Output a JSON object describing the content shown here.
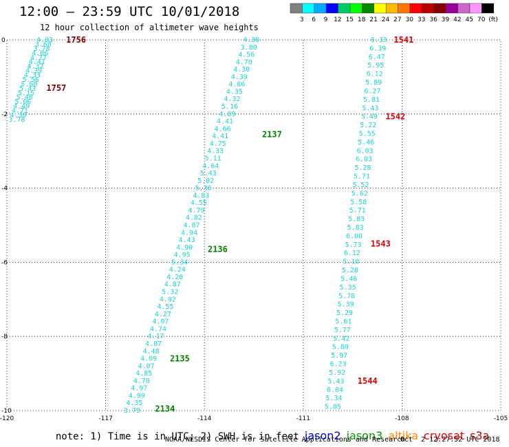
{
  "header": {
    "title": "12:00 – 23:59 UTC 10/01/2018",
    "subtitle": "12 hour collection of altimeter wave heights"
  },
  "colorbar": {
    "colors": [
      "#808080",
      "#00ffff",
      "#00aaff",
      "#0000ff",
      "#00cc66",
      "#00ff00",
      "#008800",
      "#ffff00",
      "#ffbb00",
      "#ff7700",
      "#ff0000",
      "#bb0000",
      "#880000",
      "#990099",
      "#cc66cc",
      "#ff99ff",
      "#000000"
    ],
    "labels": [
      "3",
      "6",
      "9",
      "12",
      "15",
      "18",
      "21",
      "24",
      "27",
      "30",
      "33",
      "36",
      "39",
      "42",
      "45",
      "70",
      "(ft)"
    ]
  },
  "chart_data": {
    "type": "scatter",
    "title": "12:00 – 23:59 UTC 10/01/2018",
    "subtitle": "12 hour collection of altimeter wave heights",
    "xlim": [
      -120,
      -105
    ],
    "ylim": [
      -10,
      0
    ],
    "x_ticks": [
      "-120",
      "-117",
      "-114",
      "-111",
      "-108",
      "-105"
    ],
    "y_ticks": [
      "0",
      "-2",
      "-4",
      "-6",
      "-8",
      "-10"
    ],
    "grid": true,
    "tracks": [
      {
        "values": [
          "4.03",
          "3.60",
          "3.78",
          "4.06",
          "4.77",
          "4.41",
          "4.32",
          "4.39",
          "4.33",
          "5.56",
          "5.60",
          "5.43",
          "5.15",
          "5.48",
          "5.06",
          "4.49",
          "4.71",
          "4.30",
          "3.78"
        ],
        "start": [
          -118.85,
          0.0
        ],
        "end": [
          -119.7,
          -2.15
        ],
        "labels": [
          {
            "text": "1756",
            "x": -118.2,
            "y": 0.0,
            "color": "#800000"
          },
          {
            "text": "1757",
            "x": -118.8,
            "y": -1.3,
            "color": "#800000"
          }
        ]
      },
      {
        "values": [
          "4.30",
          "3.80",
          "4.56",
          "4.70",
          "4.30",
          "4.39",
          "4.86",
          "4.35",
          "4.32",
          "5.16",
          "4.89",
          "4.41",
          "4.66",
          "4.41",
          "4.75",
          "4.33",
          "5.11",
          "4.64",
          "5.43",
          "5.02",
          "5.36",
          "4.83",
          "4.55",
          "4.79",
          "4.82",
          "4.87",
          "4.94",
          "4.43",
          "4.90",
          "4.95",
          "5.34",
          "4.24",
          "4.20",
          "4.87",
          "5.32",
          "4.92",
          "4.55",
          "4.27",
          "4.07",
          "4.74",
          "4.17",
          "4.07",
          "4.48",
          "4.09",
          "4.07",
          "4.85",
          "4.70",
          "4.97",
          "4.99",
          "4.35",
          "3.79"
        ],
        "start": [
          -112.58,
          0.0
        ],
        "end": [
          -116.2,
          -10.0
        ],
        "labels": [
          {
            "text": "2137",
            "x": -112.25,
            "y": -2.55,
            "color": "#008000"
          },
          {
            "text": "2136",
            "x": -113.9,
            "y": -5.65,
            "color": "#008000"
          },
          {
            "text": "2135",
            "x": -115.05,
            "y": -8.6,
            "color": "#008000"
          },
          {
            "text": "2134",
            "x": -115.5,
            "y": -9.95,
            "color": "#008000"
          }
        ]
      },
      {
        "values": [
          "6.33",
          "6.39",
          "6.47",
          "5.95",
          "6.12",
          "5.89",
          "6.27",
          "5.81",
          "5.43",
          "5.49",
          "5.22",
          "5.55",
          "5.46",
          "6.03",
          "6.03",
          "5.28",
          "5.71",
          "5.52",
          "5.62",
          "5.58",
          "5.71",
          "5.83",
          "5.83",
          "6.00",
          "5.73",
          "6.12",
          "5.10",
          "5.28",
          "5.46",
          "5.35",
          "5.78",
          "5.39",
          "5.29",
          "5.61",
          "5.77",
          "5.42",
          "5.80",
          "5.97",
          "6.23",
          "5.92",
          "5.43",
          "6.04",
          "5.34",
          "5.05"
        ],
        "start": [
          -108.7,
          0.0
        ],
        "end": [
          -110.1,
          -9.9
        ],
        "labels": [
          {
            "text": "1541",
            "x": -108.25,
            "y": 0.0,
            "color": "#dd0000"
          },
          {
            "text": "1542",
            "x": -108.5,
            "y": -2.07,
            "color": "#dd0000"
          },
          {
            "text": "1543",
            "x": -108.95,
            "y": -5.5,
            "color": "#dd0000"
          },
          {
            "text": "1544",
            "x": -109.35,
            "y": -9.2,
            "color": "#dd0000"
          }
        ]
      }
    ]
  },
  "footer": {
    "note": "note: 1) Time is in UTC; 2) SWH is in feet",
    "satellites": [
      {
        "name": "jason2",
        "color": "#0000dd"
      },
      {
        "name": "jason3",
        "color": "#009900"
      },
      {
        "name": "altika",
        "color": "#ff8800"
      },
      {
        "name": "cryosat",
        "color": "#ee0000"
      },
      {
        "name": "s3a",
        "color": "#bb0000"
      }
    ],
    "credit": "NOAA/NESDIS Center for Satellite Applications and Research",
    "timestamp": "Oct  2 12:27:52 UTC 2018"
  }
}
